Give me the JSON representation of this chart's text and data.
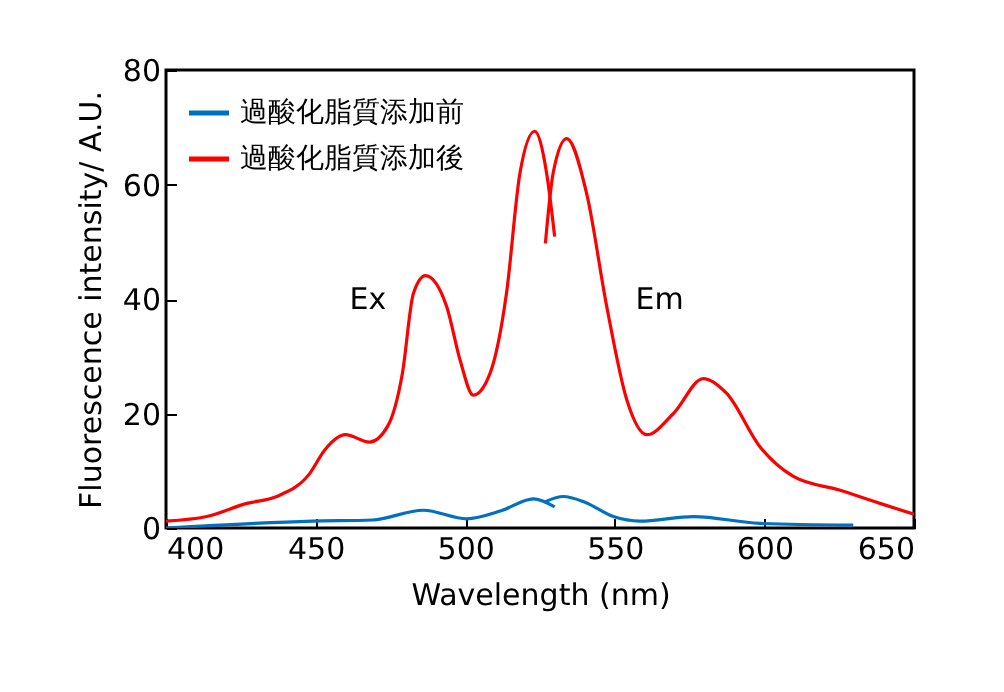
{
  "chart_data": {
    "type": "line",
    "xlabel": "Wavelength (nm)",
    "ylabel": "Fluorescence intensity/ A.U.",
    "xlim": [
      400,
      650
    ],
    "xticks": [
      400,
      450,
      500,
      550,
      600,
      650
    ],
    "ylim": [
      0,
      80
    ],
    "yticks": [
      0,
      20,
      40,
      60,
      80
    ],
    "legend": "top left",
    "series": [
      {
        "name": "過酸化脂質添加前",
        "color": "#0070c0",
        "x": [
          400,
          449,
          469,
          486,
          500.5,
          512,
          522.8,
          529.9
        ],
        "values": [
          0,
          1.2,
          1.4,
          3.1,
          1.6,
          3,
          5.1,
          3.7
        ]
      },
      {
        "color": "#0070c0",
        "x": [
          526.8,
          532.8,
          540,
          549.5,
          558.4,
          576.3,
          598.5,
          629.7
        ],
        "values": [
          4.6,
          5.5,
          4.5,
          2,
          1.2,
          2,
          0.8,
          0.5
        ]
      },
      {
        "name": "過酸化脂質添加後",
        "color": "#ff0000",
        "x": [
          400,
          413.6,
          427,
          437,
          448,
          453,
          460,
          468,
          474,
          479,
          482.7,
          486.7,
          493.8,
          498.3,
          502.7,
          508.3,
          513.8,
          518.3,
          523.2,
          527.2,
          529.9
        ],
        "values": [
          1.2,
          2,
          4.3,
          5.5,
          9.5,
          13.6,
          16.3,
          15,
          17.7,
          27,
          41,
          44.1,
          38.7,
          29.3,
          23.2,
          27,
          41,
          62,
          69.3,
          62,
          50.9
        ]
      },
      {
        "color": "#ff0000",
        "x": [
          526.8,
          529.4,
          533.9,
          540.6,
          547.3,
          554,
          560.7,
          569.6,
          579.6,
          587.4,
          598.5,
          609.7,
          625.3,
          638.6,
          650
        ],
        "values": [
          49.7,
          62,
          68,
          58.4,
          38.7,
          22.4,
          16.3,
          20,
          26.1,
          23.5,
          14.2,
          9,
          6.6,
          4.3,
          2.4
        ]
      }
    ],
    "annotations": [
      "Ex",
      "Em"
    ]
  }
}
